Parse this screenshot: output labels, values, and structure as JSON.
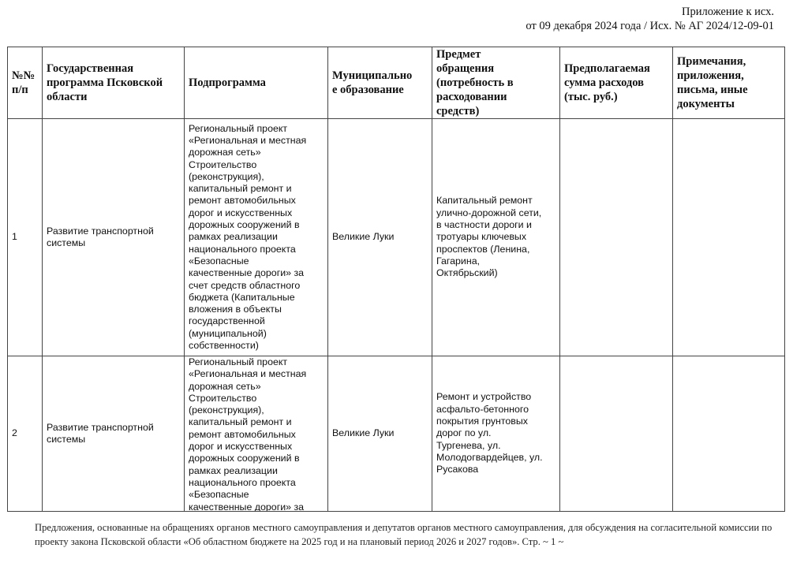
{
  "header": {
    "line1": "Приложение к исх.",
    "line2": "от 09 декабря 2024 года / Исх. № АГ 2024/12-09-01"
  },
  "table": {
    "columns": [
      "№№\nп/п",
      "Государственная\nпрограмма Псковской\nобласти",
      "Подпрограмма",
      "Муниципально\nе образование",
      "Предмет\nобращения\n(потребность в\nрасходовании\nсредств)",
      "Предполагаемая\nсумма расходов\n(тыс. руб.)",
      "Примечания,\nприложения,\nписьма, иные\nдокументы"
    ],
    "rows": [
      {
        "num": "1",
        "program": "Развитие транспортной\nсистемы",
        "subprogram": "Региональный проект\n«Региональная и местная\nдорожная сеть»\nСтроительство\n(реконструкция),\nкапитальный ремонт и\nремонт автомобильных\nдорог и искусственных\nдорожных сооружений в\nрамках реализации\nнационального проекта\n«Безопасные\nкачественные дороги» за\nсчет средств областного\nбюджета (Капитальные\nвложения в объекты\nгосударственной\n(муниципальной)\nсобственности)",
        "municipality": "Великие Луки",
        "subject": "Капитальный ремонт\nулично-дорожной сети,\nв частности дороги и\nтротуары ключевых\nпроспектов (Ленина,\nГагарина,\nОктябрьский)",
        "amount": "",
        "notes": ""
      },
      {
        "num": "2",
        "program": "Развитие транспортной\nсистемы",
        "subprogram": "Региональный проект\n«Региональная и местная\nдорожная сеть»\nСтроительство\n(реконструкция),\nкапитальный ремонт и\nремонт автомобильных\nдорог и искусственных\nдорожных сооружений в\nрамках реализации\nнационального проекта\n«Безопасные\nкачественные дороги» за",
        "municipality": "Великие Луки",
        "subject": "Ремонт и устройство\nасфальто-бетонного\nпокрытия грунтовых\nдорог по ул.\nТургенева, ул.\nМолодогвардейцев, ул.\nРусакова",
        "amount": "",
        "notes": ""
      }
    ]
  },
  "footer": {
    "text": "Предложения, основанные на обращениях органов местного самоуправления и депутатов органов местного самоуправления, для обсуждения на согласительной комиссии по проекту закона Псковской области «Об областном бюджете на 2025 год и на плановый период 2026 и 2027 годов». Стр. ~ 1 ~"
  }
}
